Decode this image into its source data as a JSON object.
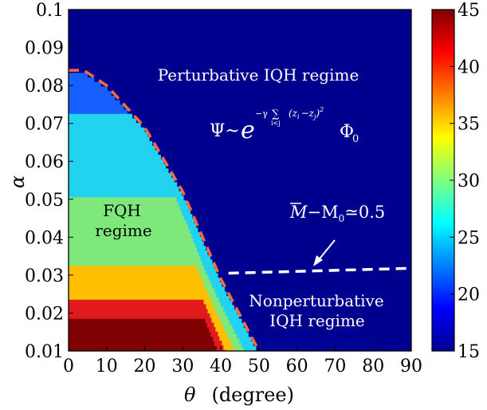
{
  "chart_data": {
    "type": "heatmap",
    "title": "",
    "xlabel": "θ (degree)",
    "ylabel": "α",
    "xlim": [
      0,
      90
    ],
    "ylim": [
      0.01,
      0.1
    ],
    "x_ticks": [
      "0",
      "10",
      "20",
      "30",
      "40",
      "50",
      "60",
      "70",
      "80",
      "90"
    ],
    "y_ticks": [
      "0.01",
      "0.02",
      "0.03",
      "0.04",
      "0.05",
      "0.06",
      "0.07",
      "0.08",
      "0.09",
      "0.1"
    ],
    "colorbar": {
      "range": [
        15,
        45
      ],
      "ticks": [
        "15",
        "20",
        "25",
        "30",
        "35",
        "40",
        "45"
      ],
      "colormap": "jet"
    },
    "regions": [
      {
        "name": "FQH regime",
        "value": 30
      },
      {
        "name": "Perturbative IQH regime",
        "value": 15
      },
      {
        "name": "Nonperturbative IQH regime",
        "value": 15
      }
    ],
    "phase_boundary_dashed": {
      "color": "#ff6a3d",
      "points": [
        [
          0,
          0.084
        ],
        [
          4,
          0.084
        ],
        [
          10,
          0.08
        ],
        [
          20,
          0.069
        ],
        [
          30,
          0.052
        ],
        [
          40,
          0.029
        ],
        [
          50,
          0.01
        ]
      ]
    },
    "iqh_boundary_dashed": {
      "color": "#ffffff",
      "points": [
        [
          42,
          0.0305
        ],
        [
          90,
          0.0318
        ]
      ]
    },
    "bands": [
      {
        "value": 45,
        "alpha_max": 0.0185,
        "color": "#7f0000"
      },
      {
        "value": 40,
        "alpha_max": 0.0235,
        "color": "#e31a1c"
      },
      {
        "value": 35,
        "alpha_max": 0.0325,
        "color": "#fdbf00"
      },
      {
        "value": 30,
        "alpha_max": 0.0505,
        "color": "#7fe87a"
      },
      {
        "value": 25,
        "alpha_max": 0.0725,
        "color": "#22d3f0"
      },
      {
        "value": 20,
        "alpha_max": 0.0845,
        "color": "#1560ff"
      }
    ],
    "background_color": "#00008f",
    "annotations": [
      {
        "text": "Perturbative IQH regime"
      },
      {
        "text": "Ψ~e^{-γ Σ_{i<j} (z_i − z_j)^2} Φ_0"
      },
      {
        "text": "FQH regime"
      },
      {
        "text": "M̄ − M_0 ≃ 0.5"
      },
      {
        "text": "Nonperturbative IQH regime"
      }
    ]
  },
  "labels": {
    "perturbative": "Perturbative IQH regime",
    "psi": "Ψ~",
    "e": "e",
    "exponent_gamma": "−γ",
    "exponent_sum": "∑",
    "exponent_sub": "i<j",
    "exponent_body": "(z",
    "exponent_i": "i",
    "exponent_minus": "−z",
    "exponent_j": "j",
    "exponent_close": ")",
    "exponent_sq": "2",
    "phi": "Φ",
    "phi_sub": "0",
    "fqh_line1": "FQH",
    "fqh_line2": "regime",
    "mbar": "M",
    "mbar_rest": "−M",
    "mbar_sub": "0",
    "mbar_value": "≃0.5",
    "nonpert_line1": "Nonperturbative",
    "nonpert_line2": "IQH regime",
    "xlabel_theta": "θ",
    "xlabel_unit": "(degree)",
    "ylabel": "α"
  }
}
